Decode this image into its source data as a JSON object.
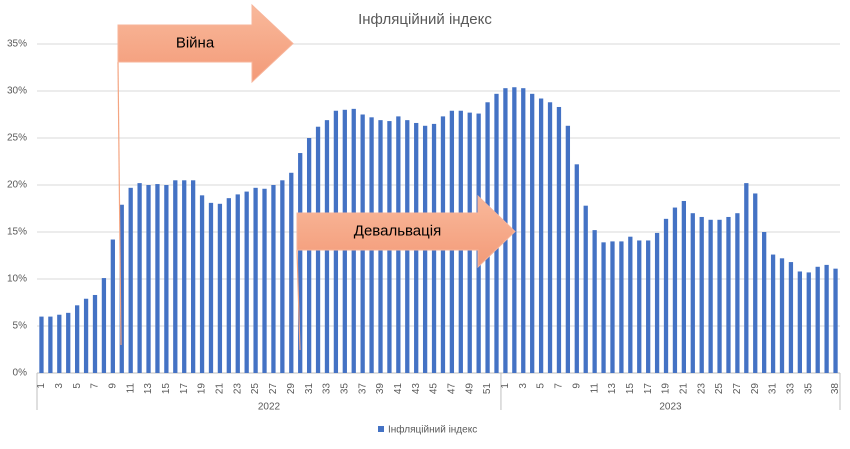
{
  "chart_data": {
    "type": "bar",
    "title": "Інфляційний індекс",
    "groups": [
      {
        "label": "2022",
        "categories": [
          "1",
          null,
          "3",
          null,
          "5",
          null,
          "7",
          null,
          "9",
          null,
          "11",
          null,
          "13",
          null,
          "15",
          null,
          "17",
          null,
          "19",
          null,
          "21",
          null,
          "23",
          null,
          "25",
          null,
          "27",
          null,
          "29",
          null,
          "31",
          null,
          "33",
          null,
          "35",
          null,
          "37",
          null,
          "39",
          null,
          "41",
          null,
          "43",
          null,
          "45",
          null,
          "47",
          null,
          "49",
          null,
          "51",
          null
        ]
      },
      {
        "label": "2023",
        "categories": [
          "1",
          null,
          "3",
          null,
          "5",
          null,
          "7",
          null,
          "9",
          null,
          "11",
          null,
          "13",
          null,
          "15",
          null,
          "17",
          null,
          "19",
          null,
          "21",
          null,
          "23",
          null,
          "25",
          null,
          "27",
          null,
          "29",
          null,
          "31",
          null,
          "33",
          null,
          "35",
          null,
          null,
          "38"
        ]
      }
    ],
    "series": [
      {
        "name": "Інфляційний індекс",
        "color": "#4472c4",
        "values": [
          6.0,
          6.0,
          6.2,
          6.4,
          7.2,
          7.9,
          8.3,
          10.1,
          14.2,
          17.9,
          19.7,
          20.2,
          20.0,
          20.1,
          20.0,
          20.5,
          20.5,
          20.5,
          18.9,
          18.1,
          18.0,
          18.6,
          19.0,
          19.3,
          19.7,
          19.6,
          20.0,
          20.5,
          21.3,
          23.4,
          25.0,
          26.2,
          26.9,
          27.9,
          28.0,
          28.1,
          27.5,
          27.2,
          26.9,
          26.8,
          27.3,
          26.9,
          26.6,
          26.3,
          26.5,
          27.3,
          27.9,
          27.9,
          27.7,
          27.6,
          28.8,
          29.7,
          30.3,
          30.4,
          30.3,
          29.7,
          29.2,
          28.8,
          28.3,
          26.3,
          22.2,
          17.8,
          15.2,
          13.9,
          14.0,
          14.0,
          14.5,
          14.1,
          14.1,
          14.9,
          16.4,
          17.6,
          18.3,
          17.0,
          16.6,
          16.3,
          16.3,
          16.6,
          17.0,
          20.2,
          19.1,
          15.0,
          12.6,
          12.2,
          11.8,
          10.8,
          10.7,
          11.3,
          11.5,
          11.1
        ]
      }
    ],
    "ylim": [
      0,
      35
    ],
    "yticks": [
      {
        "value": 0,
        "label": "0%"
      },
      {
        "value": 5,
        "label": "5%"
      },
      {
        "value": 10,
        "label": "10%"
      },
      {
        "value": 15,
        "label": "15%"
      },
      {
        "value": 20,
        "label": "20%"
      },
      {
        "value": 25,
        "label": "25%"
      },
      {
        "value": 30,
        "label": "30%"
      },
      {
        "value": 35,
        "label": "35%"
      }
    ],
    "grid": true,
    "legend": "bottom",
    "annotations": [
      {
        "text": "Війна"
      },
      {
        "text": "Девальвація"
      }
    ]
  }
}
